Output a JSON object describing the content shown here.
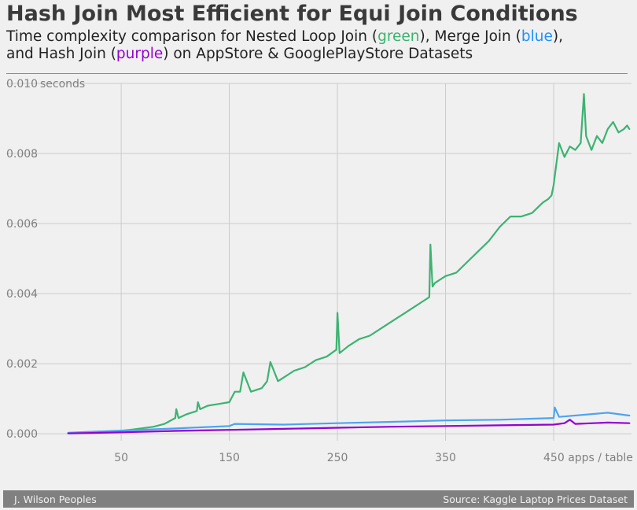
{
  "title": "Hash Join Most Efficient for Equi Join Conditions",
  "subtitle": {
    "line1_a": "Time complexity comparison for Nested Loop Join (",
    "green_word": "green",
    "line1_b": "), Merge Join (",
    "blue_word": "blue",
    "line1_c": "),",
    "line2_a": "and Hash Join (",
    "purple_word": "purple",
    "line2_b": ") on AppStore & GooglePlayStore Datasets"
  },
  "footer": {
    "author": "J. Wilson Peoples",
    "source": "Source: Kaggle Laptop Prices Dataset"
  },
  "chart_data": {
    "type": "line",
    "xlim": [
      -1,
      522
    ],
    "ylim": [
      -0.0002,
      0.01
    ],
    "x_ticks": [
      50,
      150,
      250,
      350,
      450
    ],
    "x_tick_labels": [
      "50",
      "150",
      "250",
      "350",
      "450 apps / table"
    ],
    "y_ticks": [
      0.0,
      0.002,
      0.004,
      0.006,
      0.008,
      0.01
    ],
    "y_tick_labels": [
      "0.000",
      "0.002",
      "0.004",
      "0.006",
      "0.008",
      "0.010"
    ],
    "y_unit_label": "seconds",
    "grid": true,
    "series": [
      {
        "color": "#3cb371",
        "x": [
          1,
          20,
          40,
          60,
          80,
          90,
          100,
          101,
          103,
          110,
          120,
          121,
          123,
          130,
          140,
          150,
          155,
          160,
          163,
          170,
          180,
          185,
          188,
          195,
          200,
          210,
          220,
          230,
          240,
          249,
          250,
          252,
          260,
          270,
          280,
          290,
          300,
          310,
          320,
          330,
          335,
          336,
          338,
          340,
          350,
          360,
          370,
          380,
          390,
          400,
          410,
          420,
          430,
          440,
          445,
          448,
          450,
          455,
          460,
          465,
          470,
          475,
          478,
          480,
          485,
          490,
          495,
          500,
          505,
          510,
          515,
          518,
          520
        ],
        "y": [
          2e-05,
          3e-05,
          5e-05,
          0.00012,
          0.0002,
          0.00028,
          0.00045,
          0.0007,
          0.00045,
          0.00055,
          0.00065,
          0.0009,
          0.0007,
          0.0008,
          0.00085,
          0.0009,
          0.0012,
          0.0012,
          0.00175,
          0.0012,
          0.0013,
          0.0015,
          0.00205,
          0.0015,
          0.0016,
          0.0018,
          0.0019,
          0.0021,
          0.0022,
          0.0024,
          0.00345,
          0.0023,
          0.0025,
          0.0027,
          0.0028,
          0.003,
          0.0032,
          0.0034,
          0.0036,
          0.0038,
          0.0039,
          0.0054,
          0.0042,
          0.0043,
          0.0045,
          0.0046,
          0.0049,
          0.0052,
          0.0055,
          0.0059,
          0.0062,
          0.0062,
          0.0063,
          0.0066,
          0.0067,
          0.0068,
          0.0071,
          0.0083,
          0.0079,
          0.0082,
          0.0081,
          0.0083,
          0.0097,
          0.0085,
          0.0081,
          0.0085,
          0.0083,
          0.0087,
          0.0089,
          0.0086,
          0.0087,
          0.0088,
          0.0087
        ]
      },
      {
        "color": "#4da3f0",
        "x": [
          1,
          50,
          100,
          150,
          155,
          200,
          250,
          300,
          350,
          400,
          450,
          451,
          455,
          500,
          520
        ],
        "y": [
          3e-05,
          9e-05,
          0.00015,
          0.00022,
          0.00028,
          0.00026,
          0.0003,
          0.00034,
          0.00038,
          0.0004,
          0.00045,
          0.00075,
          0.00048,
          0.0006,
          0.00052
        ]
      },
      {
        "color": "#9400d3",
        "x": [
          1,
          50,
          100,
          150,
          200,
          250,
          300,
          350,
          400,
          450,
          460,
          465,
          470,
          500,
          520
        ],
        "y": [
          1e-05,
          4e-05,
          8e-05,
          0.00011,
          0.00014,
          0.00017,
          0.0002,
          0.00022,
          0.00024,
          0.00026,
          0.0003,
          0.0004,
          0.00028,
          0.00032,
          0.0003
        ]
      }
    ]
  }
}
